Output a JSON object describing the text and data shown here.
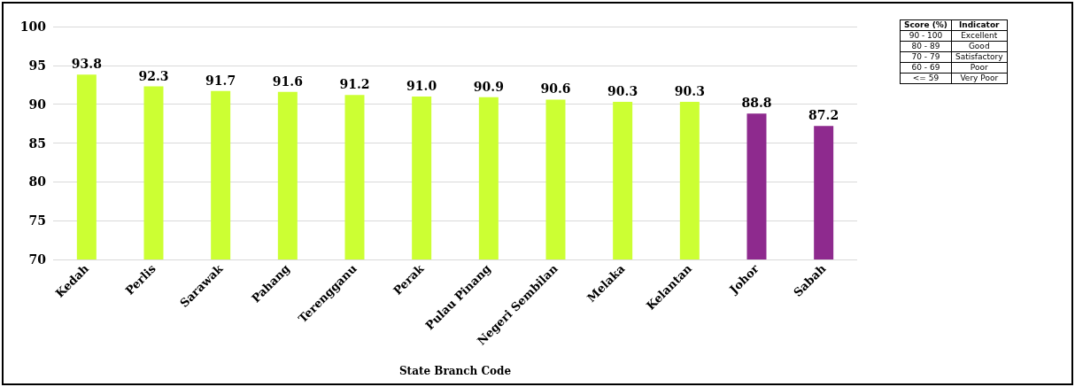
{
  "chart_data": {
    "type": "bar",
    "xlabel": "State Branch Code",
    "categories": [
      "Kedah",
      "Perlis",
      "Sarawak",
      "Pahang",
      "Terengganu",
      "Perak",
      "Pulau Pinang",
      "Negeri Sembilan",
      "Melaka",
      "Kelantan",
      "Johor",
      "Sabah"
    ],
    "values": [
      93.8,
      92.3,
      91.7,
      91.6,
      91.2,
      91.0,
      90.9,
      90.6,
      90.3,
      90.3,
      88.8,
      87.2
    ],
    "value_labels": [
      "93.8",
      "92.3",
      "91.7",
      "91.6",
      "91.2",
      "91.0",
      "90.9",
      "90.6",
      "90.3",
      "90.3",
      "88.8",
      "87.2"
    ],
    "colors": [
      "#ccff33",
      "#ccff33",
      "#ccff33",
      "#ccff33",
      "#ccff33",
      "#ccff33",
      "#ccff33",
      "#ccff33",
      "#ccff33",
      "#ccff33",
      "#8e2a8e",
      "#8e2a8e"
    ],
    "ylim": [
      70,
      100
    ],
    "yticks": [
      70,
      75,
      80,
      85,
      90,
      95,
      100
    ],
    "grid": "y",
    "annotations": [
      "Score (%)",
      "Indicator",
      "90 - 100",
      "Excellent",
      "80 - 89",
      "Good",
      "70 - 79",
      "Satisfactory",
      "60 - 69",
      "Poor",
      "<= 59",
      "Very Poor"
    ]
  }
}
